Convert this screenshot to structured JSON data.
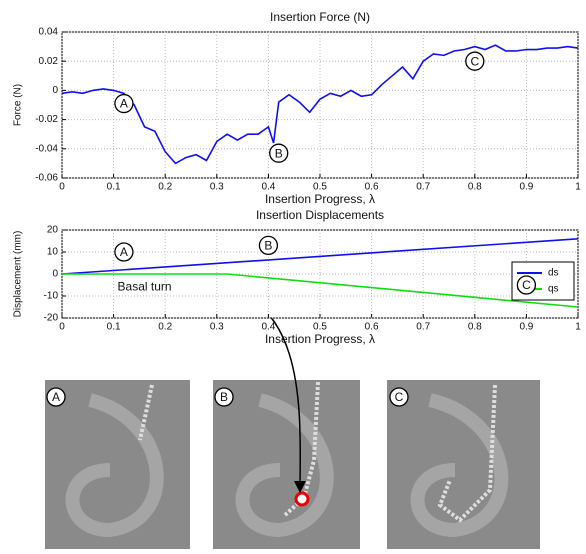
{
  "chart_data": [
    {
      "type": "line",
      "title": "Insertion Force (N)",
      "x_label": "Insertion Progress, λ",
      "y_label": "Force (N)",
      "x": [
        0,
        0.02,
        0.04,
        0.06,
        0.08,
        0.1,
        0.12,
        0.14,
        0.16,
        0.18,
        0.2,
        0.22,
        0.24,
        0.26,
        0.28,
        0.3,
        0.32,
        0.34,
        0.36,
        0.38,
        0.4,
        0.41,
        0.42,
        0.44,
        0.46,
        0.48,
        0.5,
        0.52,
        0.54,
        0.56,
        0.58,
        0.6,
        0.62,
        0.64,
        0.66,
        0.68,
        0.7,
        0.72,
        0.74,
        0.76,
        0.78,
        0.8,
        0.82,
        0.84,
        0.86,
        0.88,
        0.9,
        0.92,
        0.94,
        0.96,
        0.98,
        1
      ],
      "series": [
        {
          "color": "#1010ee",
          "values": [
            -0.002,
            -0.001,
            -0.002,
            0,
            0.001,
            0,
            -0.002,
            -0.01,
            -0.025,
            -0.028,
            -0.042,
            -0.05,
            -0.046,
            -0.044,
            -0.048,
            -0.035,
            -0.03,
            -0.034,
            -0.03,
            -0.03,
            -0.025,
            -0.036,
            -0.008,
            -0.003,
            -0.008,
            -0.015,
            -0.006,
            -0.002,
            -0.004,
            0,
            -0.004,
            -0.003,
            0.004,
            0.01,
            0.016,
            0.008,
            0.02,
            0.025,
            0.024,
            0.027,
            0.028,
            0.03,
            0.028,
            0.031,
            0.027,
            0.027,
            0.028,
            0.028,
            0.029,
            0.029,
            0.03,
            0.029
          ]
        }
      ],
      "xlim": [
        0,
        1
      ],
      "ylim": [
        -0.06,
        0.04
      ],
      "xticks": [
        0,
        0.1,
        0.2,
        0.3,
        0.4,
        0.5,
        0.6,
        0.7,
        0.8,
        0.9,
        1
      ],
      "yticks": [
        -0.06,
        -0.04,
        -0.02,
        0,
        0.02,
        0.04
      ],
      "grid": true,
      "annotations": [
        {
          "text": "A"
        },
        {
          "text": "B"
        },
        {
          "text": "C"
        }
      ]
    },
    {
      "type": "line",
      "title": "Insertion Displacements",
      "x_label": "Insertion Progress, λ",
      "y_label": "Displacement (mm)",
      "series": [
        {
          "name": "ds",
          "color": "#1010ee",
          "x": [
            0,
            1
          ],
          "values": [
            0,
            16
          ]
        },
        {
          "name": "qs",
          "color": "#10dd10",
          "x": [
            0,
            0.32,
            1
          ],
          "values": [
            0,
            0,
            -15
          ]
        }
      ],
      "xlim": [
        0,
        1
      ],
      "ylim": [
        -20,
        20
      ],
      "xticks": [
        0,
        0.1,
        0.2,
        0.3,
        0.4,
        0.5,
        0.6,
        0.7,
        0.8,
        0.9,
        1
      ],
      "yticks": [
        -20,
        -10,
        0,
        10,
        20
      ],
      "grid": true,
      "legend": "right",
      "annotations": [
        {
          "text": "A"
        },
        {
          "text": "B"
        },
        {
          "text": "C"
        },
        {
          "text": "Basal turn"
        }
      ]
    }
  ],
  "photos": {
    "labels": [
      "A",
      "B",
      "C"
    ]
  }
}
